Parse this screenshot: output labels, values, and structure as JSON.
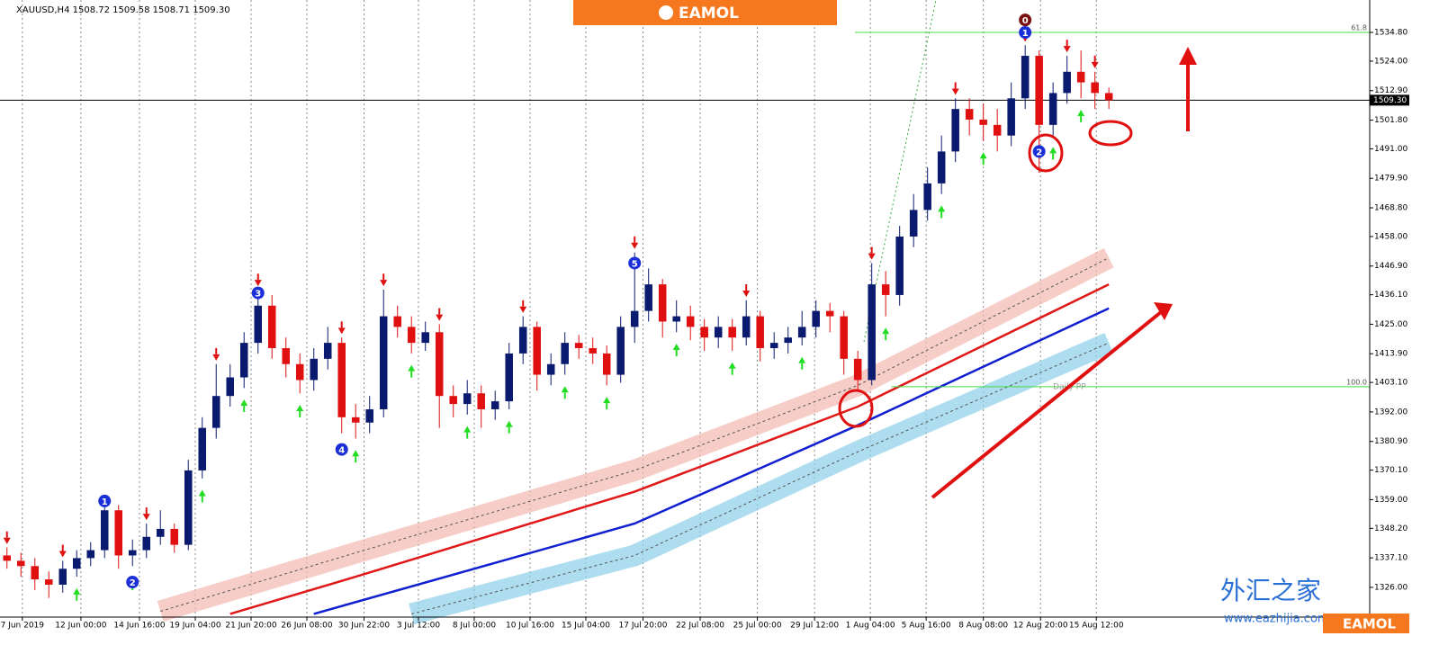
{
  "chart_data": {
    "type": "candlestick",
    "title": "XAUUSD,H4  1508.72 1509.58 1508.71 1509.30",
    "up_color": "#0a1a6e",
    "down_color": "#e01010",
    "grid": "vertical",
    "xlim": [
      -0.5,
      97.7
    ],
    "ylim": [
      1314.8,
      1547
    ],
    "yticks": [
      {
        "value": 1534.8,
        "label": "1534.80"
      },
      {
        "value": 1524,
        "label": "1524.00"
      },
      {
        "value": 1512.9,
        "label": "1512.90"
      },
      {
        "value": 1501.8,
        "label": "1501.80"
      },
      {
        "value": 1491,
        "label": "1491.00"
      },
      {
        "value": 1479.9,
        "label": "1479.90"
      },
      {
        "value": 1468.8,
        "label": "1468.80"
      },
      {
        "value": 1458,
        "label": "1458.00"
      },
      {
        "value": 1446.9,
        "label": "1446.90"
      },
      {
        "value": 1436.1,
        "label": "1436.10"
      },
      {
        "value": 1425,
        "label": "1425.00"
      },
      {
        "value": 1413.9,
        "label": "1413.90"
      },
      {
        "value": 1403.1,
        "label": "1403.10"
      },
      {
        "value": 1392,
        "label": "1392.00"
      },
      {
        "value": 1380.9,
        "label": "1380.90"
      },
      {
        "value": 1370.1,
        "label": "1370.10"
      },
      {
        "value": 1359,
        "label": "1359.00"
      },
      {
        "value": 1348.2,
        "label": "1348.20"
      },
      {
        "value": 1337.1,
        "label": "1337.10"
      },
      {
        "value": 1326,
        "label": "1326.00"
      }
    ],
    "xticks": [
      {
        "value": 1.1,
        "label": "7 Jun 2019"
      },
      {
        "value": 5.3,
        "label": "12 Jun 00:00"
      },
      {
        "value": 9.5,
        "label": "14 Jun 16:00"
      },
      {
        "value": 13.5,
        "label": "19 Jun 04:00"
      },
      {
        "value": 17.5,
        "label": "21 Jun 20:00"
      },
      {
        "value": 21.5,
        "label": "26 Jun 08:00"
      },
      {
        "value": 25.6,
        "label": "30 Jun 22:00"
      },
      {
        "value": 29.5,
        "label": "3 Jul 12:00"
      },
      {
        "value": 33.5,
        "label": "8 Jul 00:00"
      },
      {
        "value": 37.5,
        "label": "10 Jul 16:00"
      },
      {
        "value": 41.5,
        "label": "15 Jul 04:00"
      },
      {
        "value": 45.6,
        "label": "17 Jul 20:00"
      },
      {
        "value": 49.7,
        "label": "22 Jul 08:00"
      },
      {
        "value": 53.8,
        "label": "25 Jul 00:00"
      },
      {
        "value": 57.9,
        "label": "29 Jul 12:00"
      },
      {
        "value": 61.9,
        "label": "1 Aug 04:00"
      },
      {
        "value": 65.9,
        "label": "5 Aug 16:00"
      },
      {
        "value": 70,
        "label": "8 Aug 08:00"
      },
      {
        "value": 74.1,
        "label": "12 Aug 20:00"
      },
      {
        "value": 78.1,
        "label": "15 Aug 12:00"
      }
    ],
    "candles": [
      [
        1338,
        1341,
        1333,
        1336
      ],
      [
        1336,
        1339,
        1330,
        1334
      ],
      [
        1334,
        1337,
        1325,
        1329
      ],
      [
        1329,
        1332,
        1322,
        1327
      ],
      [
        1327,
        1336,
        1324,
        1333
      ],
      [
        1333,
        1340,
        1330,
        1337
      ],
      [
        1337,
        1343,
        1334,
        1340
      ],
      [
        1340,
        1360,
        1337,
        1355
      ],
      [
        1355,
        1357,
        1333,
        1338
      ],
      [
        1338,
        1344,
        1334,
        1340
      ],
      [
        1340,
        1350,
        1337,
        1345
      ],
      [
        1345,
        1355,
        1342,
        1348
      ],
      [
        1348,
        1350,
        1339,
        1342
      ],
      [
        1342,
        1374,
        1340,
        1370
      ],
      [
        1370,
        1390,
        1367,
        1386
      ],
      [
        1386,
        1410,
        1382,
        1398
      ],
      [
        1398,
        1410,
        1394,
        1405
      ],
      [
        1405,
        1422,
        1401,
        1418
      ],
      [
        1418,
        1438,
        1414,
        1432
      ],
      [
        1432,
        1436,
        1412,
        1416
      ],
      [
        1416,
        1420,
        1405,
        1410
      ],
      [
        1410,
        1414,
        1399,
        1404
      ],
      [
        1404,
        1416,
        1400,
        1412
      ],
      [
        1412,
        1424,
        1408,
        1418
      ],
      [
        1418,
        1420,
        1384,
        1390
      ],
      [
        1390,
        1395,
        1382,
        1388
      ],
      [
        1388,
        1398,
        1384,
        1393
      ],
      [
        1393,
        1438,
        1390,
        1428
      ],
      [
        1428,
        1432,
        1420,
        1424
      ],
      [
        1424,
        1428,
        1414,
        1418
      ],
      [
        1418,
        1426,
        1415,
        1422
      ],
      [
        1422,
        1425,
        1386,
        1398
      ],
      [
        1398,
        1402,
        1390,
        1395
      ],
      [
        1395,
        1404,
        1391,
        1399
      ],
      [
        1399,
        1402,
        1386,
        1393
      ],
      [
        1393,
        1400,
        1389,
        1396
      ],
      [
        1396,
        1418,
        1393,
        1414
      ],
      [
        1414,
        1428,
        1410,
        1424
      ],
      [
        1424,
        1426,
        1400,
        1406
      ],
      [
        1406,
        1414,
        1402,
        1410
      ],
      [
        1410,
        1422,
        1406,
        1418
      ],
      [
        1418,
        1421,
        1412,
        1416
      ],
      [
        1416,
        1420,
        1410,
        1414
      ],
      [
        1414,
        1417,
        1402,
        1406
      ],
      [
        1406,
        1428,
        1403,
        1424
      ],
      [
        1424,
        1452,
        1418,
        1430
      ],
      [
        1430,
        1446,
        1426,
        1440
      ],
      [
        1440,
        1442,
        1420,
        1426
      ],
      [
        1426,
        1434,
        1422,
        1428
      ],
      [
        1428,
        1432,
        1419,
        1424
      ],
      [
        1424,
        1427,
        1415,
        1420
      ],
      [
        1420,
        1428,
        1416,
        1424
      ],
      [
        1424,
        1427,
        1415,
        1420
      ],
      [
        1420,
        1434,
        1417,
        1428
      ],
      [
        1428,
        1430,
        1411,
        1416
      ],
      [
        1416,
        1422,
        1412,
        1418
      ],
      [
        1418,
        1424,
        1414,
        1420
      ],
      [
        1420,
        1430,
        1417,
        1424
      ],
      [
        1424,
        1434,
        1420,
        1430
      ],
      [
        1430,
        1433,
        1422,
        1428
      ],
      [
        1428,
        1430,
        1406,
        1412
      ],
      [
        1412,
        1415,
        1400,
        1404
      ],
      [
        1404,
        1448,
        1402,
        1440
      ],
      [
        1440,
        1445,
        1428,
        1436
      ],
      [
        1436,
        1462,
        1432,
        1458
      ],
      [
        1458,
        1474,
        1454,
        1468
      ],
      [
        1468,
        1484,
        1464,
        1478
      ],
      [
        1478,
        1496,
        1474,
        1490
      ],
      [
        1490,
        1510,
        1486,
        1506
      ],
      [
        1506,
        1510,
        1496,
        1502
      ],
      [
        1502,
        1508,
        1494,
        1500
      ],
      [
        1500,
        1506,
        1490,
        1496
      ],
      [
        1496,
        1516,
        1492,
        1510
      ],
      [
        1510,
        1530,
        1506,
        1526
      ],
      [
        1526,
        1528,
        1482,
        1500
      ],
      [
        1500,
        1516,
        1496,
        1512
      ],
      [
        1512,
        1526,
        1508,
        1520
      ],
      [
        1520,
        1528,
        1510,
        1516
      ],
      [
        1516,
        1520,
        1506,
        1512
      ],
      [
        1512,
        1514,
        1506,
        1509.3
      ]
    ],
    "indicators": [
      {
        "color": "#f4b8b0",
        "style": "band",
        "x": [
          11,
          25,
          45,
          61,
          79
        ],
        "values": [
          1317,
          1339,
          1370,
          1402,
          1450
        ]
      },
      {
        "color": "#e01818",
        "style": "line",
        "x": [
          16,
          25,
          45,
          61,
          79
        ],
        "values": [
          1316,
          1330,
          1362,
          1394,
          1440
        ]
      },
      {
        "color": "#1020d0",
        "style": "line",
        "x": [
          22,
          45,
          61,
          79
        ],
        "values": [
          1316,
          1350,
          1387,
          1431
        ]
      },
      {
        "color": "#8ccfe8",
        "style": "band",
        "x": [
          29,
          45,
          61,
          79
        ],
        "values": [
          1316,
          1338,
          1377,
          1418
        ]
      }
    ],
    "sell_arrows": {
      "color": "#e01010",
      "x": [
        0,
        4,
        10,
        15,
        18,
        24,
        27,
        31,
        37,
        45,
        53,
        62,
        68,
        73,
        76,
        78
      ],
      "values": [
        1344,
        1339,
        1353,
        1413,
        1441,
        1423,
        1441,
        1428,
        1431,
        1455,
        1437,
        1451,
        1513,
        1533,
        1529,
        1523
      ]
    },
    "buy_arrows": {
      "color": "#22dd22",
      "x": [
        5,
        9,
        14,
        17,
        21,
        25,
        29,
        33,
        36,
        40,
        43,
        48,
        52,
        57,
        63,
        67,
        70,
        75,
        77
      ],
      "values": [
        1324,
        1328,
        1361,
        1395,
        1393,
        1376,
        1408,
        1385,
        1387,
        1400,
        1396,
        1416,
        1409,
        1411,
        1422,
        1468,
        1488,
        1490,
        1504
      ]
    },
    "wave_labels": [
      {
        "text": "1",
        "x": 7,
        "price": 1358.5,
        "color": "#1a2fd8"
      },
      {
        "text": "2",
        "x": 9,
        "price": 1328,
        "color": "#1a2fd8"
      },
      {
        "text": "3",
        "x": 18,
        "price": 1436.8,
        "color": "#1a2fd8"
      },
      {
        "text": "4",
        "x": 24,
        "price": 1377.9,
        "color": "#1a2fd8"
      },
      {
        "text": "5",
        "x": 45,
        "price": 1448,
        "color": "#1a2fd8"
      },
      {
        "text": "2",
        "x": 74,
        "price": 1490,
        "color": "#1a2fd8"
      },
      {
        "text": "1",
        "x": 73,
        "price": 1534.8,
        "color": "#1a2fd8"
      },
      {
        "text": "0",
        "x": 73,
        "price": 1539.5,
        "color": "#7a1010"
      }
    ],
    "levels": [
      {
        "value": 1534.8,
        "label": "61.8",
        "color": "#44dd44",
        "x_from": 60.8
      },
      {
        "value": 1401.5,
        "label": "100.0",
        "color": "#44dd44",
        "x_from": 63.4
      }
    ],
    "pivot_label": {
      "text": "Daily PP",
      "x": 75,
      "price": 1401.5
    },
    "current_price": {
      "value": 1509.3,
      "label": "1509.30"
    },
    "banner": "EAMOL",
    "watermark": {
      "chinese": "外汇之家",
      "url": "www.eazhijia.com",
      "brand": "EAMOL"
    }
  }
}
